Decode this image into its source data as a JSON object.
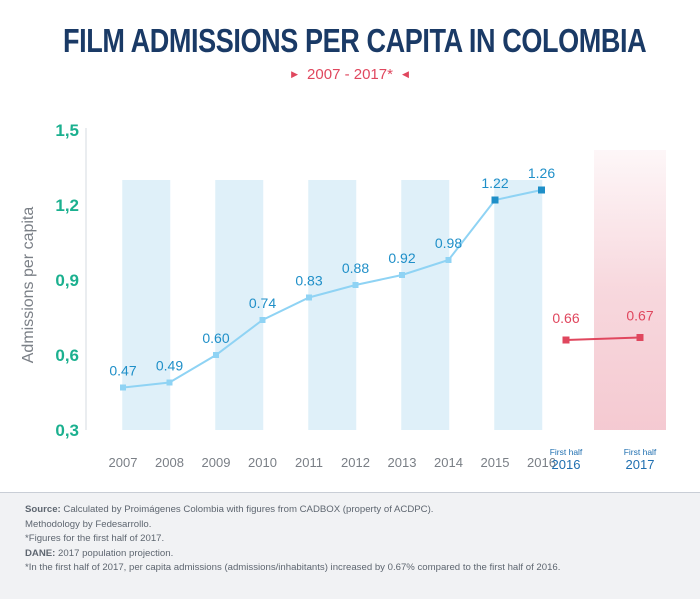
{
  "title": "FILM ADMISSIONS PER CAPITA IN COLOMBIA",
  "subtitle": "2007 - 2017*",
  "chart_data": {
    "type": "line",
    "title": "FILM ADMISSIONS PER CAPITA IN COLOMBIA",
    "subtitle": "2007 - 2017*",
    "ylabel": "Admissions per capita",
    "xlabel": "",
    "ylim": [
      0.3,
      1.5
    ],
    "y_ticks": [
      "0,3",
      "0,6",
      "0,9",
      "1,2",
      "1,5"
    ],
    "y_tick_values": [
      0.3,
      0.6,
      0.9,
      1.2,
      1.5
    ],
    "series": [
      {
        "categories": [
          "2007",
          "2008",
          "2009",
          "2010",
          "2011",
          "2012",
          "2013",
          "2014",
          "2015",
          "2016"
        ],
        "values": [
          0.47,
          0.49,
          0.6,
          0.74,
          0.83,
          0.88,
          0.92,
          0.98,
          1.22,
          1.26
        ],
        "labels": [
          "0.47",
          "0.49",
          "0.60",
          "0.74",
          "0.83",
          "0.88",
          "0.92",
          "0.98",
          "1.22",
          "1.26"
        ],
        "color": "#8fd3f4",
        "label_color": "#1f8fc8"
      },
      {
        "categories": [
          {
            "top": "First half",
            "bottom": "2016"
          },
          {
            "top": "First half",
            "bottom": "2017"
          }
        ],
        "values": [
          0.66,
          0.67
        ],
        "labels": [
          "0.66",
          "0.67"
        ],
        "color": "#e0475e",
        "label_color": "#e0475e"
      }
    ],
    "grid": false,
    "colors": {
      "title": "#1a3a66",
      "accent": "#e0475e",
      "axis_ticks": "#1bb08f",
      "band": "#d9edf8",
      "highlight_band": "#f4c7cf",
      "axis_label": "#7a7f86",
      "x_labels": "#7a7f86",
      "first_half_year": "#1f6fb0"
    }
  },
  "footer": {
    "source_label": "Source:",
    "source_text": " Calculated by Proimágenes Colombia with figures from CADBOX (property of ACDPC).",
    "methodology": "Methodology by Fedesarrollo.",
    "note1": "*Figures for the first half of 2017.",
    "dane_label": "DANE:",
    "dane_text": " 2017 population projection.",
    "note2": "*In the first half of 2017, per capita admissions (admissions/inhabitants) increased by 0.67% compared to the first half of 2016."
  }
}
